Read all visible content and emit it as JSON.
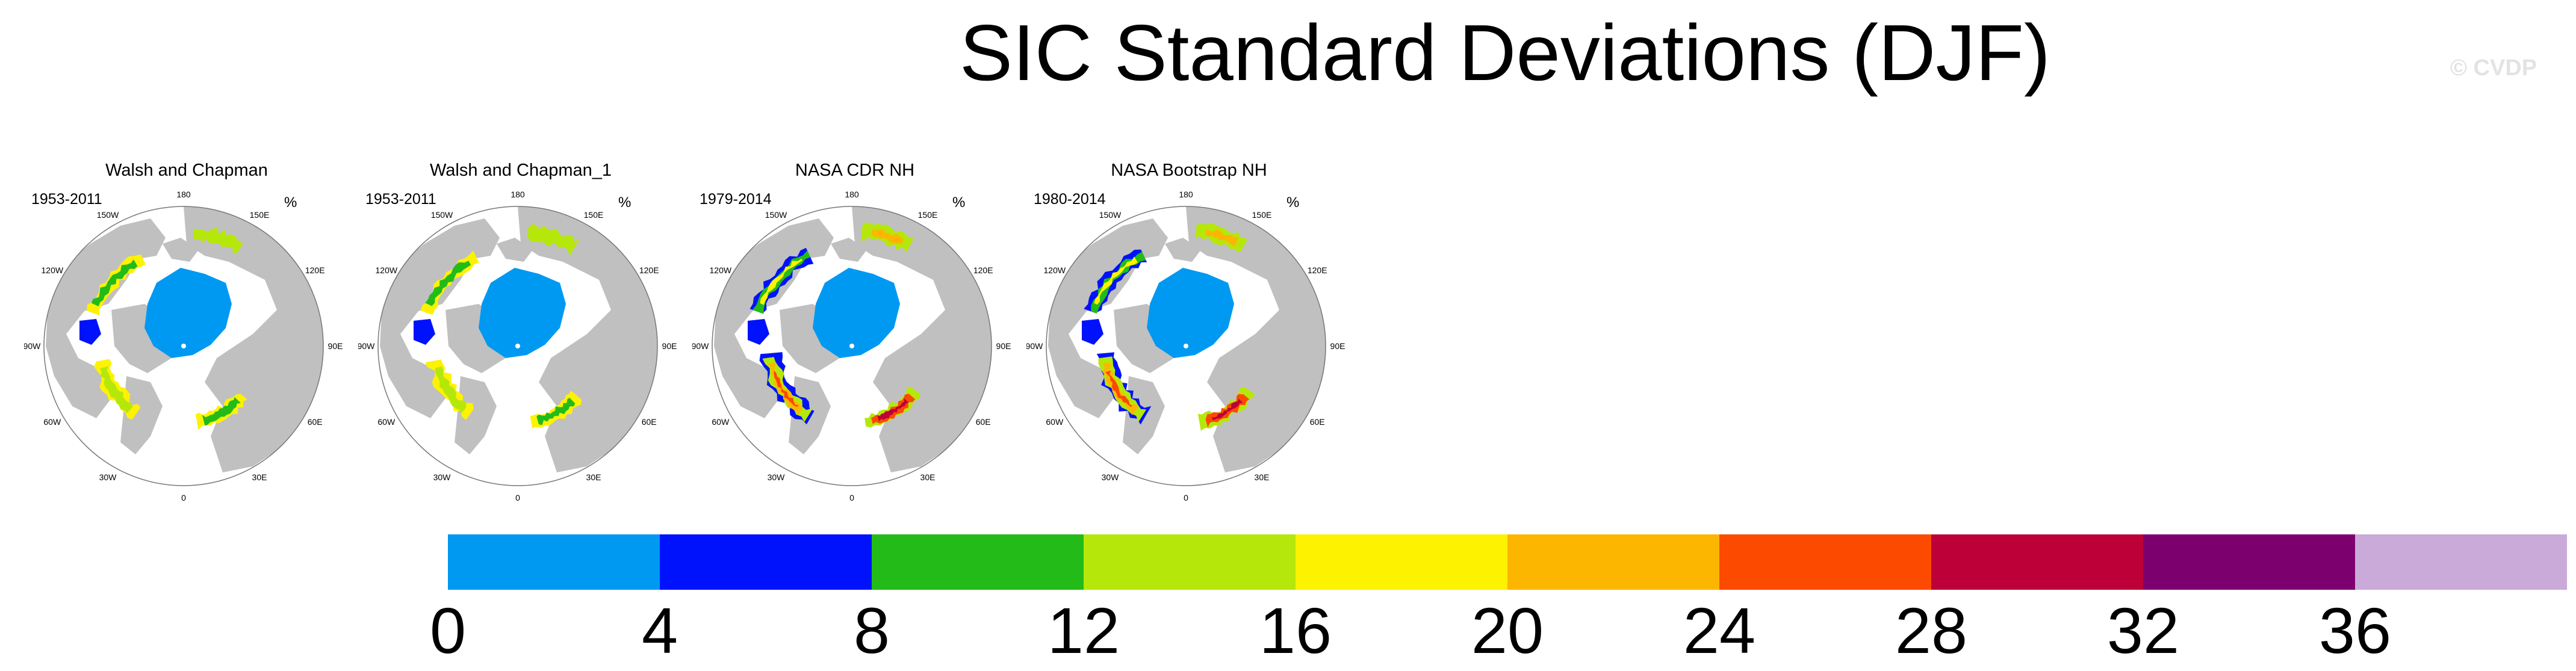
{
  "title": "SIC Standard Deviations (DJF)",
  "watermark": "© CVDP",
  "units": "%",
  "panels": [
    {
      "title": "Walsh and Chapman",
      "period": "1953-2011"
    },
    {
      "title": "Walsh and Chapman_1",
      "period": "1953-2011"
    },
    {
      "title": "NASA CDR NH",
      "period": "1979-2014"
    },
    {
      "title": "NASA Bootstrap NH",
      "period": "1980-2014"
    }
  ],
  "longitude_labels": [
    "180",
    "150E",
    "120E",
    "90E",
    "60E",
    "30E",
    "0",
    "30W",
    "60W",
    "90W",
    "120W",
    "150W"
  ],
  "colorbar": {
    "colors": [
      "#0099f2",
      "#0012fb",
      "#22bb18",
      "#b6e70a",
      "#fdf200",
      "#fcb600",
      "#fc4a00",
      "#bd0038",
      "#7d006f",
      "#c9aad8"
    ],
    "labels": [
      "0",
      "4",
      "8",
      "12",
      "16",
      "20",
      "24",
      "28",
      "32",
      "36"
    ]
  },
  "map_colors": {
    "land": "#c0c0c0",
    "ocean": "#ffffff"
  }
}
